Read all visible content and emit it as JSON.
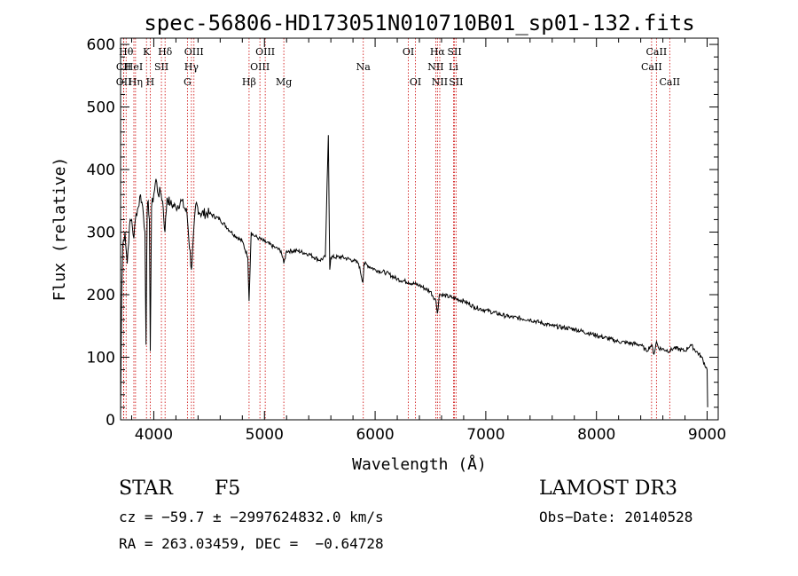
{
  "chart_data": {
    "type": "line",
    "title": "spec-56806-HD173051N010710B01_sp01-132.fits",
    "xlabel": "Wavelength (Å)",
    "ylabel": "Flux (relative)",
    "xlim": [
      3700,
      9100
    ],
    "ylim": [
      0,
      610
    ],
    "xticks": [
      4000,
      5000,
      6000,
      7000,
      8000,
      9000
    ],
    "yticks": [
      0,
      100,
      200,
      300,
      400,
      500,
      600
    ],
    "series": [
      {
        "name": "spectrum",
        "x": [
          3700,
          3710,
          3720,
          3740,
          3760,
          3780,
          3800,
          3820,
          3840,
          3860,
          3880,
          3900,
          3920,
          3930,
          3940,
          3950,
          3960,
          3968,
          3980,
          4000,
          4020,
          4040,
          4060,
          4080,
          4101,
          4120,
          4150,
          4200,
          4250,
          4300,
          4340,
          4380,
          4420,
          4500,
          4600,
          4700,
          4800,
          4850,
          4861,
          4880,
          4900,
          4950,
          5000,
          5100,
          5150,
          5175,
          5200,
          5300,
          5400,
          5500,
          5550,
          5577,
          5590,
          5600,
          5700,
          5800,
          5850,
          5890,
          5900,
          6000,
          6100,
          6200,
          6300,
          6400,
          6500,
          6550,
          6563,
          6580,
          6600,
          6700,
          6800,
          6900,
          7000,
          7200,
          7400,
          7600,
          7800,
          8000,
          8200,
          8400,
          8450,
          8498,
          8520,
          8542,
          8560,
          8662,
          8700,
          8800,
          8850,
          8950,
          9000,
          9005
        ],
        "y": [
          10,
          200,
          280,
          300,
          250,
          310,
          320,
          290,
          330,
          340,
          360,
          340,
          300,
          120,
          330,
          350,
          320,
          110,
          340,
          360,
          385,
          360,
          365,
          350,
          300,
          355,
          345,
          340,
          350,
          330,
          240,
          345,
          330,
          330,
          320,
          300,
          285,
          260,
          190,
          300,
          295,
          290,
          285,
          275,
          270,
          250,
          270,
          270,
          265,
          255,
          260,
          455,
          240,
          260,
          260,
          255,
          250,
          220,
          250,
          240,
          235,
          225,
          220,
          215,
          205,
          190,
          170,
          200,
          200,
          195,
          190,
          180,
          175,
          165,
          160,
          150,
          145,
          135,
          125,
          120,
          110,
          120,
          105,
          125,
          115,
          110,
          115,
          110,
          120,
          100,
          80,
          20
        ]
      }
    ],
    "lines": [
      {
        "name": "Hθ",
        "wl": 3750,
        "row": 1
      },
      {
        "name": "CII",
        "wl": 3727,
        "row": 2
      },
      {
        "name": "OII",
        "wl": 3729,
        "row": 3
      },
      {
        "name": "HeI",
        "wl": 3820,
        "row": 2
      },
      {
        "name": "Hη",
        "wl": 3835,
        "row": 3
      },
      {
        "name": "K",
        "wl": 3934,
        "row": 1
      },
      {
        "name": "SII",
        "wl": 4069,
        "row": 2
      },
      {
        "name": "H",
        "wl": 3968,
        "row": 3
      },
      {
        "name": "Hδ",
        "wl": 4102,
        "row": 1
      },
      {
        "name": "OIII",
        "wl": 4363,
        "row": 1
      },
      {
        "name": "Hγ",
        "wl": 4340,
        "row": 2
      },
      {
        "name": "G",
        "wl": 4304,
        "row": 3
      },
      {
        "name": "OIII",
        "wl": 5007,
        "row": 1
      },
      {
        "name": "OIII",
        "wl": 4959,
        "row": 2
      },
      {
        "name": "Hβ",
        "wl": 4861,
        "row": 3
      },
      {
        "name": "Mg",
        "wl": 5175,
        "row": 3
      },
      {
        "name": "Na",
        "wl": 5893,
        "row": 2
      },
      {
        "name": "OI",
        "wl": 6300,
        "row": 1
      },
      {
        "name": "OI",
        "wl": 6364,
        "row": 3
      },
      {
        "name": "Hα",
        "wl": 6563,
        "row": 1
      },
      {
        "name": "NII",
        "wl": 6548,
        "row": 2
      },
      {
        "name": "NII",
        "wl": 6584,
        "row": 3
      },
      {
        "name": "SII",
        "wl": 6717,
        "row": 1
      },
      {
        "name": "Li",
        "wl": 6708,
        "row": 2
      },
      {
        "name": "SII",
        "wl": 6731,
        "row": 3
      },
      {
        "name": "CaII",
        "wl": 8542,
        "row": 1
      },
      {
        "name": "CaII",
        "wl": 8498,
        "row": 2
      },
      {
        "name": "CaII",
        "wl": 8662,
        "row": 3
      }
    ]
  },
  "info": {
    "object_class": "STAR",
    "subclass": "F5",
    "survey": "LAMOST DR3",
    "cz": "cz = −59.7 ± −2997624832.0 km/s",
    "obs_date": "Obs−Date: 20140528",
    "radec": "RA = 263.03459, DEC =  −0.64728"
  },
  "colors": {
    "line_marker": "#cc0000",
    "spectrum": "#000000"
  }
}
